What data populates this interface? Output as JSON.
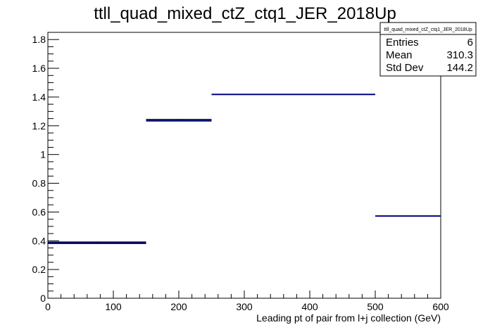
{
  "chart_data": {
    "type": "histogram",
    "title": "ttll_quad_mixed_ctZ_ctq1_JER_2018Up",
    "xlabel": "Leading pt of pair from l+j collection (GeV)",
    "ylabel": "",
    "xlim": [
      0,
      600
    ],
    "ylim": [
      0,
      1.85
    ],
    "x_ticks": [
      {
        "value": 0,
        "label": "0"
      },
      {
        "value": 100,
        "label": "100"
      },
      {
        "value": 200,
        "label": "200"
      },
      {
        "value": 300,
        "label": "300"
      },
      {
        "value": 400,
        "label": "400"
      },
      {
        "value": 500,
        "label": "500"
      },
      {
        "value": 600,
        "label": "600"
      }
    ],
    "y_ticks": [
      {
        "value": 0,
        "label": "0"
      },
      {
        "value": 0.2,
        "label": "0.2"
      },
      {
        "value": 0.4,
        "label": "0.4"
      },
      {
        "value": 0.6,
        "label": "0.6"
      },
      {
        "value": 0.8,
        "label": "0.8"
      },
      {
        "value": 1.0,
        "label": "1"
      },
      {
        "value": 1.2,
        "label": "1.2"
      },
      {
        "value": 1.4,
        "label": "1.4"
      },
      {
        "value": 1.6,
        "label": "1.6"
      },
      {
        "value": 1.8,
        "label": "1.8"
      }
    ],
    "bins": [
      {
        "x_low": 0,
        "x_high": 150,
        "value": 0.385,
        "err_low": 0.38,
        "err_high": 0.392
      },
      {
        "x_low": 150,
        "x_high": 250,
        "value": 1.236,
        "err_low": 1.232,
        "err_high": 1.245
      },
      {
        "x_low": 250,
        "x_high": 500,
        "value": 1.418,
        "err_low": 1.418,
        "err_high": 1.418
      },
      {
        "x_low": 500,
        "x_high": 600,
        "value": 0.572,
        "err_low": 0.572,
        "err_high": 0.572
      }
    ],
    "colors": {
      "line": "#000080",
      "error_band": "#2ca02c",
      "error_edge": "#000000"
    },
    "stats_box": {
      "title": "ttll_quad_mixed_ctZ_ctq1_JER_2018Up",
      "rows": [
        {
          "label": "Entries",
          "value": "6"
        },
        {
          "label": "Mean",
          "value": "310.3"
        },
        {
          "label": "Std Dev",
          "value": "144.2"
        }
      ]
    }
  }
}
